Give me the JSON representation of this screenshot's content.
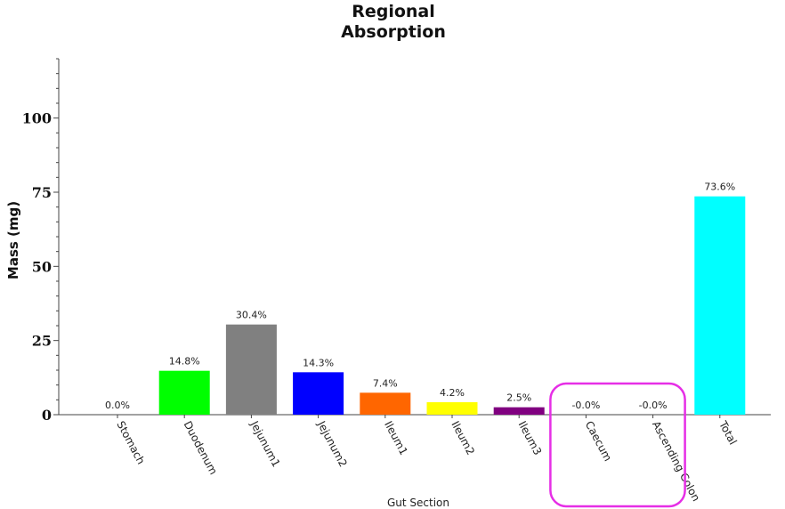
{
  "chart_data": {
    "type": "bar",
    "title": [
      "Regional",
      "Absorption"
    ],
    "xlabel": "Gut Section",
    "ylabel": "Mass (mg)",
    "ylim": [
      0,
      120
    ],
    "yticks": [
      0,
      25,
      50,
      75,
      100
    ],
    "grid": false,
    "categories": [
      "Stomach",
      "Duodenum",
      "Jejunum1",
      "Jejunum2",
      "Ileum1",
      "Ileum2",
      "Ileum3",
      "Caecum",
      "Ascending Colon",
      "Total"
    ],
    "values": [
      0.0,
      14.8,
      30.4,
      14.3,
      7.4,
      4.2,
      2.5,
      0.0,
      0.0,
      73.6
    ],
    "data_labels": [
      "0.0%",
      "14.8%",
      "30.4%",
      "14.3%",
      "7.4%",
      "4.2%",
      "2.5%",
      "-0.0%",
      "-0.0%",
      "73.6%"
    ],
    "colors": [
      "#808080",
      "#00ff00",
      "#808080",
      "#0000ff",
      "#ff6600",
      "#ffff00",
      "#800080",
      "#808080",
      "#808080",
      "#00ffff"
    ],
    "annotations": [
      {
        "type": "highlight-box",
        "color": "#e62ee6",
        "categories": [
          "Caecum",
          "Ascending Colon"
        ]
      }
    ]
  }
}
